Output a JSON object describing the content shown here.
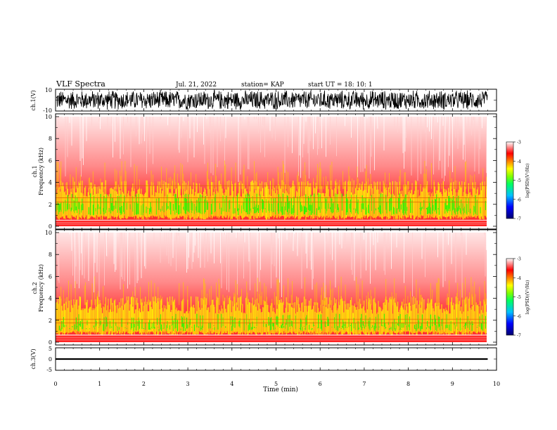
{
  "header": {
    "title": "VLF Spectra",
    "date": "Jul. 21, 2022",
    "station": "station= KAP",
    "start": "start  UT =   18: 10: 1"
  },
  "chart_data": [
    {
      "type": "line",
      "ylabel": "ch.1(V)",
      "ylim": [
        -10,
        10
      ],
      "yticks": [
        "10",
        "-10"
      ],
      "description_series": "ch.1 waveform"
    },
    {
      "type": "heatmap",
      "ylabel_top": "ch.1",
      "ylabel": "Frequency (kHz)",
      "ylim": [
        0,
        10
      ],
      "yticks": [
        "0",
        "2",
        "4",
        "6",
        "8",
        "10"
      ],
      "colorbar": {
        "label": "log(PSD)(V²/Hz)",
        "ticks": [
          "-3",
          "-4",
          "-5",
          "-6",
          "-7"
        ],
        "range": [
          -7,
          -3
        ]
      }
    },
    {
      "type": "heatmap",
      "ylabel_top": "ch.2",
      "ylabel": "Frequency (kHz)",
      "ylim": [
        0,
        10
      ],
      "yticks": [
        "0",
        "2",
        "4",
        "6",
        "8",
        "10"
      ],
      "colorbar": {
        "label": "log(PSD)(V²/Hz)",
        "ticks": [
          "-3",
          "-4",
          "-5",
          "-6",
          "-7"
        ],
        "range": [
          -7,
          -3
        ]
      }
    },
    {
      "type": "line",
      "ylabel": "ch.3(V)",
      "ylim": [
        -5,
        5
      ],
      "yticks": [
        "5",
        "0",
        "-5"
      ]
    }
  ],
  "xaxis": {
    "label": "Time (min)",
    "ticks": [
      "0",
      "1",
      "2",
      "3",
      "4",
      "5",
      "6",
      "7",
      "8",
      "9",
      "10"
    ],
    "range": [
      0,
      10
    ],
    "data_end": 9.8
  },
  "colors": {
    "spec_high": "#ff0000",
    "spec_mid": "#ffff00",
    "spec_low": "#00ff00",
    "line": "#000000"
  }
}
